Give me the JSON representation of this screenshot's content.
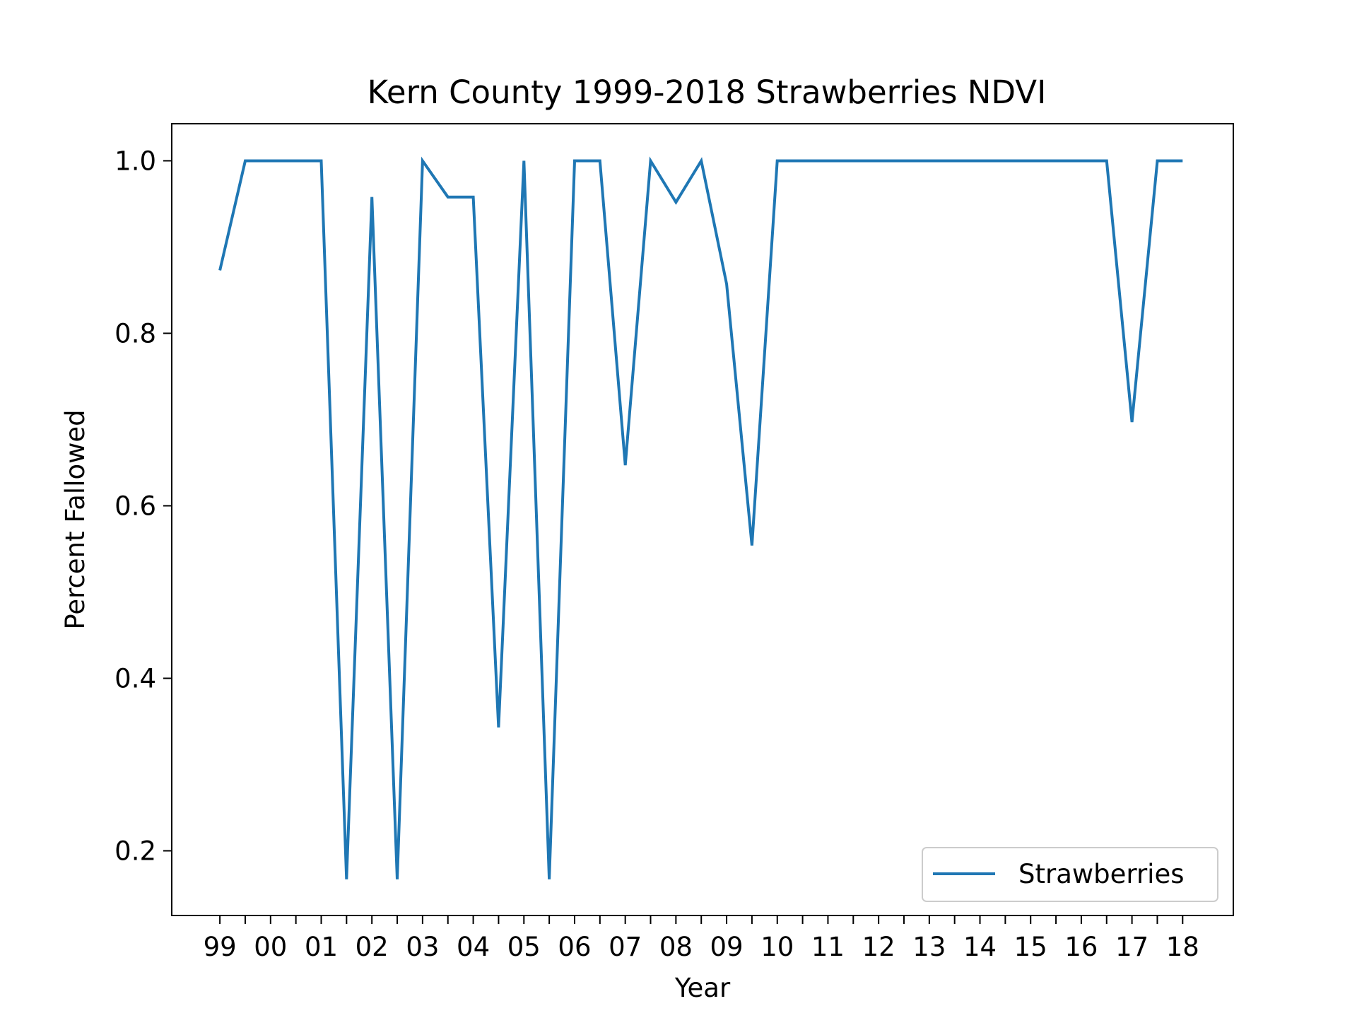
{
  "chart_data": {
    "type": "line",
    "title": "Kern County 1999-2018 Strawberries NDVI",
    "xlabel": "Year",
    "ylabel": "Percent Fallowed",
    "xlim": [
      -0.95,
      20.0
    ],
    "ylim": [
      0.125,
      1.043
    ],
    "x_tick_positions": [
      0,
      1,
      2,
      3,
      4,
      5,
      6,
      7,
      8,
      9,
      10,
      11,
      12,
      13,
      14,
      15,
      16,
      17,
      18,
      19
    ],
    "x_tick_labels": [
      "99",
      "00",
      "01",
      "02",
      "03",
      "04",
      "05",
      "06",
      "07",
      "08",
      "09",
      "10",
      "11",
      "12",
      "13",
      "14",
      "15",
      "16",
      "17",
      "18"
    ],
    "x_minor_ticks": [
      0.5,
      1.5,
      2.5,
      3.5,
      4.5,
      5.5,
      6.5,
      7.5,
      8.5,
      9.5,
      10.5,
      11.5,
      12.5,
      13.5,
      14.5,
      15.5,
      16.5,
      17.5,
      18.5
    ],
    "y_ticks": [
      0.2,
      0.4,
      0.6,
      0.8,
      1.0
    ],
    "y_tick_labels": [
      "0.2",
      "0.4",
      "0.6",
      "0.8",
      "1.0"
    ],
    "grid": false,
    "legend_position": "lower right",
    "series": [
      {
        "name": "Strawberries",
        "color": "#1f77b4",
        "x": [
          0,
          0.5,
          1,
          1.5,
          2,
          2.5,
          3,
          3.5,
          4,
          4.5,
          5,
          5.5,
          6,
          6.5,
          7,
          7.5,
          8,
          8.5,
          9,
          9.5,
          10,
          10.5,
          11,
          11.5,
          12,
          12.5,
          13,
          13.5,
          14,
          14.5,
          15,
          15.5,
          16,
          16.5,
          17,
          17.5,
          18,
          18.5,
          19
        ],
        "y": [
          0.873,
          1.0,
          1.0,
          1.0,
          1.0,
          0.167,
          0.958,
          0.167,
          1.0,
          0.958,
          0.958,
          0.343,
          1.0,
          0.167,
          1.0,
          1.0,
          0.647,
          1.0,
          0.952,
          1.0,
          0.857,
          0.554,
          1.0,
          1.0,
          1.0,
          1.0,
          1.0,
          1.0,
          1.0,
          1.0,
          1.0,
          1.0,
          1.0,
          1.0,
          1.0,
          1.0,
          0.697,
          1.0,
          1.0
        ]
      }
    ]
  }
}
